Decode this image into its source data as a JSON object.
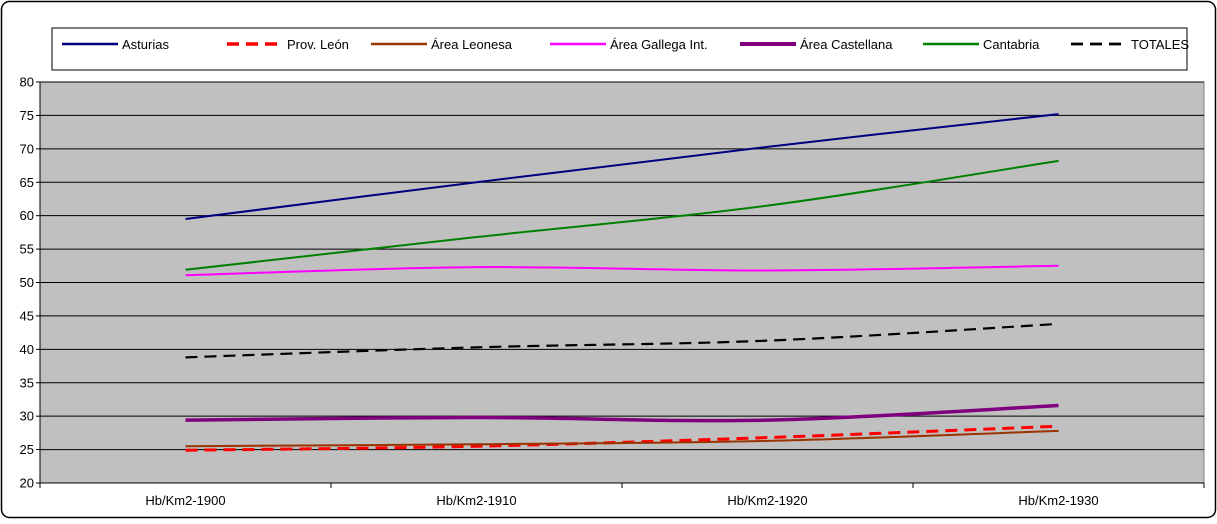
{
  "chart_data": {
    "type": "line",
    "title": "",
    "xlabel": "",
    "ylabel": "",
    "categories": [
      "Hb/Km2-1900",
      "Hb/Km2-1910",
      "Hb/Km2-1920",
      "Hb/Km2-1930"
    ],
    "ylim": [
      20,
      80
    ],
    "ytick_step": 5,
    "grid": true,
    "legend_position": "top",
    "plot_background": "#c0c0c0",
    "series": [
      {
        "name": "Asturias",
        "color": "#000080",
        "dashed": false,
        "values": [
          59.5,
          65.0,
          70.3,
          75.2
        ]
      },
      {
        "name": "Prov. León",
        "color": "#ff0000",
        "dashed": true,
        "values": [
          24.9,
          25.5,
          26.8,
          28.5
        ]
      },
      {
        "name": "Área Leonesa",
        "color": "#993300",
        "dashed": false,
        "values": [
          25.5,
          25.8,
          26.3,
          27.8
        ]
      },
      {
        "name": "Área Gallega Int.",
        "color": "#ff00ff",
        "dashed": false,
        "values": [
          51.1,
          52.3,
          51.8,
          52.5
        ]
      },
      {
        "name": "Área Castellana",
        "color": "#800080",
        "dashed": false,
        "values": [
          29.4,
          29.8,
          29.4,
          31.6
        ]
      },
      {
        "name": "Cantabria",
        "color": "#008000",
        "dashed": false,
        "values": [
          51.9,
          56.8,
          61.5,
          68.2
        ]
      },
      {
        "name": "TOTALES",
        "color": "#000000",
        "dashed": true,
        "values": [
          38.8,
          40.3,
          41.3,
          43.8
        ]
      }
    ]
  }
}
